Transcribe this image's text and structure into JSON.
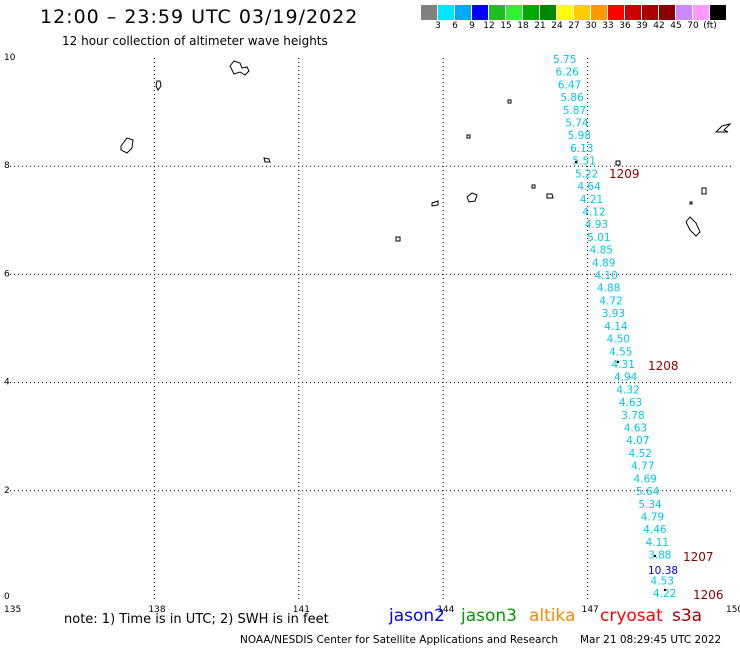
{
  "header": {
    "title": "12:00 – 23:59 UTC 03/19/2022",
    "subtitle": "12 hour collection of altimeter wave heights"
  },
  "color_scale": {
    "swatches": [
      "#808080",
      "#00e5ff",
      "#00aaff",
      "#0000ff",
      "#1fbf1f",
      "#33ee33",
      "#00aa00",
      "#008800",
      "#ffff00",
      "#ffcc00",
      "#ff9900",
      "#ff0000",
      "#cc0000",
      "#aa0000",
      "#880000",
      "#cc88ff",
      "#ff99ff",
      "#000000"
    ],
    "labels": [
      "3",
      "6",
      "9",
      "12",
      "15",
      "18",
      "21",
      "24",
      "27",
      "30",
      "33",
      "36",
      "39",
      "42",
      "45",
      "70",
      "(ft)"
    ]
  },
  "axes": {
    "x_ticks": [
      "135",
      "138",
      "141",
      "144",
      "147",
      "150"
    ],
    "y_ticks": [
      "0",
      "2",
      "4",
      "6",
      "8",
      "10"
    ]
  },
  "wave_heights": {
    "cyan_values": [
      "5.75",
      "6.26",
      "6.47",
      "5.86",
      "5.87",
      "5.74",
      "5.98",
      "6.13",
      "5.51",
      "5.22",
      "4.64",
      "4.21",
      "4.12",
      "4.93",
      "5.01",
      "4.85",
      "4.89",
      "4.10",
      "4.88",
      "4.72",
      "3.93",
      "4.14",
      "4.50",
      "4.55",
      "4.31",
      "4.94",
      "4.32",
      "4.63",
      "3.78",
      "4.63",
      "4.07",
      "4.52",
      "4.77",
      "4.69",
      "5.64",
      "5.34",
      "4.79",
      "4.46",
      "4.11",
      "3.88",
      "4.53",
      "4.22"
    ],
    "blue_value": "10.38",
    "time_labels": [
      "1209",
      "1208",
      "1207",
      "1206"
    ]
  },
  "colors": {
    "cyan": "#00c8e6",
    "blue": "#0000dd",
    "time": "#8b0000"
  },
  "footer": {
    "note": "note:  1) Time is in UTC;  2) SWH is in feet",
    "satellites": [
      {
        "name": "jason2",
        "color": "#0000ff"
      },
      {
        "name": "jason3",
        "color": "#009900"
      },
      {
        "name": "altika",
        "color": "#ff8800"
      },
      {
        "name": "cryosat",
        "color": "#ff0000"
      },
      {
        "name": "s3a",
        "color": "#aa0000"
      }
    ],
    "credit": "NOAA/NESDIS Center for Satellite Applications and Research",
    "timestamp": "Mar 21 08:29:45 UTC 2022"
  }
}
